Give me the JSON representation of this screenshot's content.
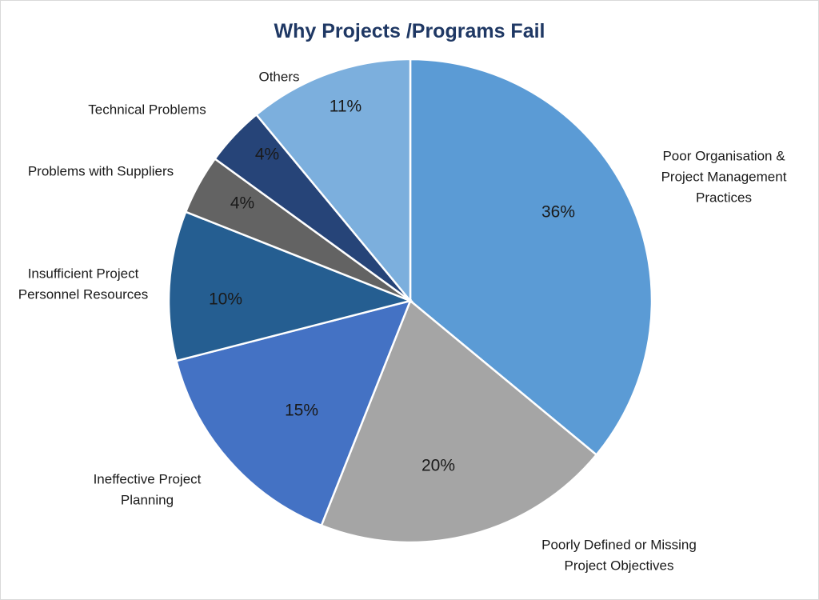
{
  "chart_data": {
    "type": "pie",
    "title": "Why Projects /Programs Fail",
    "categories": [
      "Poor Organisation & Project Management Practices",
      "Poorly Defined or Missing Project Objectives",
      "Ineffective Project Planning",
      "Insufficient Project Personnel Resources",
      "Problems with Suppliers",
      "Technical Problems",
      "Others"
    ],
    "label_lines": [
      [
        "Poor Organisation &",
        "Project Management",
        "Practices"
      ],
      [
        "Poorly Defined or Missing",
        "Project Objectives"
      ],
      [
        "Ineffective Project",
        "Planning"
      ],
      [
        "Insufficient Project",
        "Personnel Resources"
      ],
      [
        "Problems with Suppliers"
      ],
      [
        "Technical Problems"
      ],
      [
        "Others"
      ]
    ],
    "values": [
      36,
      20,
      15,
      10,
      4,
      4,
      11
    ],
    "value_labels": [
      "36%",
      "20%",
      "15%",
      "10%",
      "4%",
      "4%",
      "11%"
    ],
    "colors": [
      "#5b9bd5",
      "#a5a5a5",
      "#4472c4",
      "#255e91",
      "#636363",
      "#264478",
      "#7cafdd"
    ],
    "legend": "none"
  }
}
